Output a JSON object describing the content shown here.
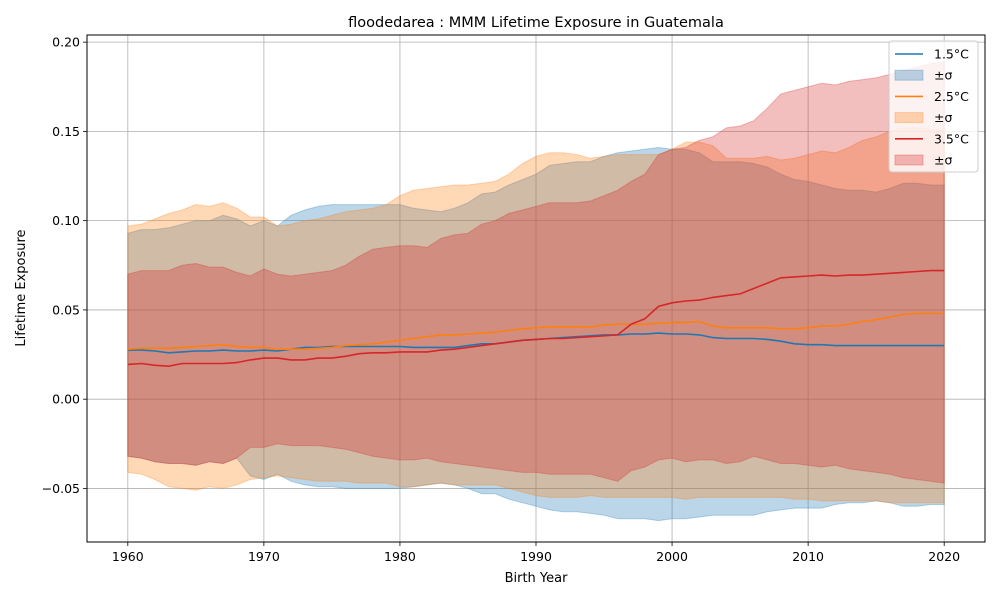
{
  "chart_data": {
    "type": "area",
    "title": "floodedarea : MMM Lifetime Exposure in Guatemala",
    "xlabel": "Birth Year",
    "ylabel": "Lifetime Exposure",
    "xlim": [
      1957,
      2023
    ],
    "ylim": [
      -0.08,
      0.204
    ],
    "xticks": [
      1960,
      1970,
      1980,
      1990,
      2000,
      2010,
      2020
    ],
    "xtick_labels": [
      "1960",
      "1970",
      "1980",
      "1990",
      "2000",
      "2010",
      "2020"
    ],
    "yticks": [
      -0.05,
      0.0,
      0.05,
      0.1,
      0.15,
      0.2
    ],
    "ytick_labels": [
      "−0.05",
      "0.00",
      "0.05",
      "0.10",
      "0.15",
      "0.20"
    ],
    "grid": true,
    "legend_position": "top-right",
    "x": [
      1960,
      1961,
      1962,
      1963,
      1964,
      1965,
      1966,
      1967,
      1968,
      1969,
      1970,
      1971,
      1972,
      1973,
      1974,
      1975,
      1976,
      1977,
      1978,
      1979,
      1980,
      1981,
      1982,
      1983,
      1984,
      1985,
      1986,
      1987,
      1988,
      1989,
      1990,
      1991,
      1992,
      1993,
      1994,
      1995,
      1996,
      1997,
      1998,
      1999,
      2000,
      2001,
      2002,
      2003,
      2004,
      2005,
      2006,
      2007,
      2008,
      2009,
      2010,
      2011,
      2012,
      2013,
      2014,
      2015,
      2016,
      2017,
      2018,
      2019,
      2020
    ],
    "series": [
      {
        "name": "1.5°C",
        "band_name": "±σ",
        "color": "#1f77b4",
        "mean": [
          0.0275,
          0.0275,
          0.027,
          0.026,
          0.0265,
          0.027,
          0.027,
          0.0275,
          0.027,
          0.027,
          0.0275,
          0.027,
          0.028,
          0.029,
          0.029,
          0.0295,
          0.0295,
          0.0295,
          0.0295,
          0.0295,
          0.0295,
          0.029,
          0.029,
          0.029,
          0.029,
          0.03,
          0.031,
          0.031,
          0.032,
          0.033,
          0.0335,
          0.034,
          0.0345,
          0.035,
          0.0355,
          0.036,
          0.036,
          0.0365,
          0.0365,
          0.037,
          0.0365,
          0.0365,
          0.036,
          0.0345,
          0.034,
          0.034,
          0.034,
          0.0335,
          0.0325,
          0.031,
          0.0305,
          0.0305,
          0.03,
          0.03,
          0.03,
          0.03,
          0.03,
          0.03,
          0.03,
          0.03,
          0.03
        ],
        "upper": [
          0.093,
          0.095,
          0.095,
          0.096,
          0.098,
          0.1,
          0.1,
          0.103,
          0.101,
          0.097,
          0.1,
          0.097,
          0.103,
          0.106,
          0.108,
          0.109,
          0.109,
          0.109,
          0.109,
          0.109,
          0.109,
          0.107,
          0.106,
          0.105,
          0.107,
          0.11,
          0.115,
          0.116,
          0.12,
          0.123,
          0.126,
          0.131,
          0.132,
          0.133,
          0.133,
          0.136,
          0.138,
          0.139,
          0.14,
          0.141,
          0.14,
          0.14,
          0.138,
          0.133,
          0.133,
          0.133,
          0.132,
          0.13,
          0.126,
          0.123,
          0.122,
          0.12,
          0.118,
          0.117,
          0.117,
          0.116,
          0.118,
          0.121,
          0.121,
          0.12,
          0.12
        ],
        "lower": [
          -0.032,
          -0.033,
          -0.035,
          -0.036,
          -0.036,
          -0.037,
          -0.035,
          -0.036,
          -0.033,
          -0.043,
          -0.045,
          -0.042,
          -0.046,
          -0.048,
          -0.049,
          -0.049,
          -0.05,
          -0.05,
          -0.05,
          -0.05,
          -0.05,
          -0.049,
          -0.048,
          -0.047,
          -0.048,
          -0.05,
          -0.053,
          -0.053,
          -0.056,
          -0.058,
          -0.06,
          -0.062,
          -0.063,
          -0.063,
          -0.064,
          -0.065,
          -0.067,
          -0.067,
          -0.067,
          -0.068,
          -0.067,
          -0.067,
          -0.066,
          -0.065,
          -0.065,
          -0.065,
          -0.065,
          -0.063,
          -0.062,
          -0.061,
          -0.061,
          -0.061,
          -0.059,
          -0.058,
          -0.058,
          -0.057,
          -0.058,
          -0.06,
          -0.06,
          -0.059,
          -0.059
        ]
      },
      {
        "name": "2.5°C",
        "band_name": "±σ",
        "color": "#ff7f0e",
        "mean": [
          0.028,
          0.0285,
          0.0285,
          0.0285,
          0.029,
          0.0295,
          0.03,
          0.0305,
          0.0295,
          0.029,
          0.029,
          0.028,
          0.028,
          0.028,
          0.0285,
          0.029,
          0.03,
          0.0305,
          0.031,
          0.032,
          0.033,
          0.034,
          0.035,
          0.036,
          0.036,
          0.0365,
          0.037,
          0.0375,
          0.0385,
          0.0395,
          0.04,
          0.0405,
          0.0405,
          0.0405,
          0.0405,
          0.0415,
          0.042,
          0.042,
          0.042,
          0.0425,
          0.043,
          0.043,
          0.0435,
          0.041,
          0.04,
          0.04,
          0.04,
          0.04,
          0.0395,
          0.0395,
          0.04,
          0.041,
          0.041,
          0.042,
          0.0435,
          0.0445,
          0.046,
          0.0475,
          0.048,
          0.048,
          0.048
        ],
        "upper": [
          0.097,
          0.098,
          0.101,
          0.104,
          0.106,
          0.109,
          0.108,
          0.11,
          0.107,
          0.102,
          0.102,
          0.097,
          0.098,
          0.1,
          0.101,
          0.103,
          0.105,
          0.106,
          0.107,
          0.109,
          0.114,
          0.117,
          0.118,
          0.119,
          0.12,
          0.12,
          0.121,
          0.122,
          0.126,
          0.132,
          0.136,
          0.138,
          0.138,
          0.137,
          0.135,
          0.136,
          0.137,
          0.137,
          0.137,
          0.137,
          0.14,
          0.144,
          0.144,
          0.142,
          0.135,
          0.135,
          0.135,
          0.136,
          0.134,
          0.135,
          0.137,
          0.139,
          0.138,
          0.141,
          0.145,
          0.147,
          0.15,
          0.152,
          0.152,
          0.151,
          0.151
        ],
        "lower": [
          -0.041,
          -0.042,
          -0.045,
          -0.049,
          -0.05,
          -0.051,
          -0.049,
          -0.05,
          -0.048,
          -0.045,
          -0.044,
          -0.043,
          -0.044,
          -0.045,
          -0.046,
          -0.046,
          -0.046,
          -0.047,
          -0.047,
          -0.047,
          -0.049,
          -0.049,
          -0.048,
          -0.047,
          -0.048,
          -0.048,
          -0.048,
          -0.048,
          -0.05,
          -0.052,
          -0.054,
          -0.055,
          -0.055,
          -0.055,
          -0.054,
          -0.055,
          -0.055,
          -0.055,
          -0.055,
          -0.055,
          -0.055,
          -0.056,
          -0.055,
          -0.055,
          -0.055,
          -0.055,
          -0.055,
          -0.055,
          -0.055,
          -0.056,
          -0.056,
          -0.057,
          -0.057,
          -0.057,
          -0.057,
          -0.057,
          -0.058,
          -0.058,
          -0.058,
          -0.058,
          -0.058
        ]
      },
      {
        "name": "3.5°C",
        "band_name": "±σ",
        "color": "#d62728",
        "mean": [
          0.0195,
          0.02,
          0.019,
          0.0185,
          0.02,
          0.02,
          0.02,
          0.02,
          0.0205,
          0.022,
          0.023,
          0.023,
          0.022,
          0.022,
          0.023,
          0.023,
          0.024,
          0.0255,
          0.026,
          0.026,
          0.0265,
          0.0265,
          0.0265,
          0.0275,
          0.028,
          0.029,
          0.03,
          0.031,
          0.032,
          0.033,
          0.0335,
          0.034,
          0.034,
          0.0345,
          0.035,
          0.0355,
          0.036,
          0.042,
          0.045,
          0.052,
          0.054,
          0.055,
          0.0555,
          0.057,
          0.058,
          0.059,
          0.062,
          0.065,
          0.068,
          0.0685,
          0.069,
          0.0695,
          0.069,
          0.0695,
          0.0695,
          0.07,
          0.0705,
          0.071,
          0.0715,
          0.072,
          0.072
        ],
        "upper": [
          0.07,
          0.072,
          0.072,
          0.072,
          0.075,
          0.076,
          0.074,
          0.074,
          0.071,
          0.069,
          0.073,
          0.07,
          0.069,
          0.07,
          0.071,
          0.072,
          0.075,
          0.08,
          0.084,
          0.085,
          0.086,
          0.086,
          0.085,
          0.09,
          0.092,
          0.093,
          0.098,
          0.1,
          0.104,
          0.106,
          0.108,
          0.11,
          0.11,
          0.11,
          0.111,
          0.114,
          0.117,
          0.122,
          0.126,
          0.137,
          0.14,
          0.141,
          0.145,
          0.147,
          0.152,
          0.153,
          0.156,
          0.163,
          0.171,
          0.173,
          0.175,
          0.177,
          0.176,
          0.178,
          0.179,
          0.18,
          0.182,
          0.184,
          0.186,
          0.188,
          0.189
        ],
        "lower": [
          -0.032,
          -0.033,
          -0.035,
          -0.036,
          -0.036,
          -0.037,
          -0.035,
          -0.036,
          -0.033,
          -0.027,
          -0.027,
          -0.025,
          -0.026,
          -0.026,
          -0.026,
          -0.027,
          -0.028,
          -0.03,
          -0.032,
          -0.033,
          -0.034,
          -0.034,
          -0.033,
          -0.035,
          -0.036,
          -0.037,
          -0.038,
          -0.039,
          -0.04,
          -0.041,
          -0.041,
          -0.042,
          -0.042,
          -0.042,
          -0.042,
          -0.044,
          -0.046,
          -0.04,
          -0.038,
          -0.034,
          -0.033,
          -0.035,
          -0.034,
          -0.034,
          -0.036,
          -0.035,
          -0.032,
          -0.034,
          -0.036,
          -0.036,
          -0.037,
          -0.038,
          -0.037,
          -0.039,
          -0.04,
          -0.041,
          -0.042,
          -0.044,
          -0.045,
          -0.046,
          -0.047
        ]
      }
    ]
  }
}
